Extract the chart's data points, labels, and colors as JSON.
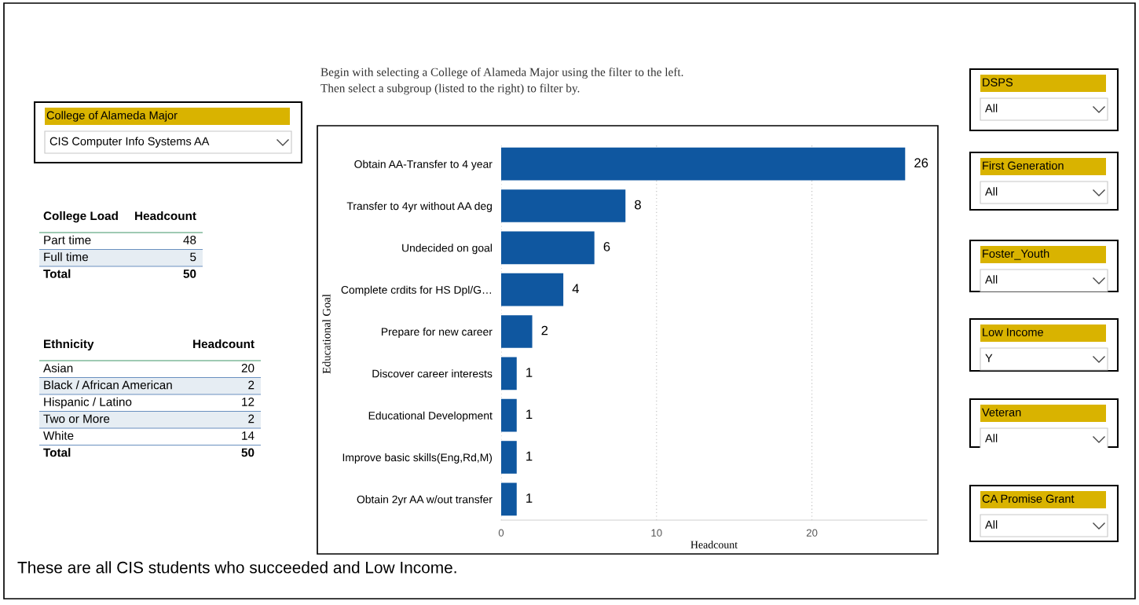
{
  "chart_data": [
    {
      "type": "other",
      "title": "College of Alameda Major",
      "annotations": [
        "CIS Computer Info Systems AA"
      ]
    },
    {
      "type": "other",
      "xlabel": "College Load",
      "ylabel": "Headcount",
      "categories": [
        "Part time",
        "Full time",
        "Total"
      ],
      "values": [
        48,
        5,
        50
      ],
      "data_labels": true
    },
    {
      "type": "other",
      "xlabel": "Ethnicity",
      "ylabel": "Headcount",
      "categories": [
        "Asian",
        "Black / African American",
        "Hispanic / Latino",
        "Two or More",
        "White",
        "Total"
      ],
      "values": [
        20,
        2,
        12,
        2,
        14,
        50
      ],
      "data_labels": true
    },
    {
      "type": "bar",
      "orientation": "horizontal",
      "subtitle": "Begin with selecting a College of Alameda Major using the filter to the left.\nThen select a subgroup (listed to the right) to filter by.",
      "ylabel": "Educational Goal",
      "xlabel": "Headcount",
      "categories": [
        "Obtain AA-Transfer to 4 year",
        "Transfer to 4yr without AA deg",
        "Undecided on goal",
        "Complete crdits for HS Dpl/G…",
        "Prepare for new career",
        "Discover career interests",
        "Educational Development",
        "Improve basic skills(Eng,Rd,M)",
        "Obtain 2yr AA w/out transfer"
      ],
      "values": [
        26,
        8,
        6,
        4,
        2,
        1,
        1,
        1,
        1
      ],
      "color": "#0f57a0",
      "data_labels": true,
      "xlim": [
        0,
        27.4
      ],
      "xticks": [
        0,
        10,
        20
      ],
      "grid": "x",
      "legend": false,
      "annotations": [
        "These are all CIS students who succeeded and Low Income."
      ]
    },
    {
      "type": "other",
      "title": "DSPS",
      "annotations": [
        "All"
      ]
    },
    {
      "type": "other",
      "title": "First Generation",
      "annotations": [
        "All"
      ]
    },
    {
      "type": "other",
      "title": "Foster_Youth",
      "annotations": [
        "All"
      ]
    },
    {
      "type": "other",
      "title": "Low Income",
      "annotations": [
        "Y"
      ]
    },
    {
      "type": "other",
      "title": "Veteran",
      "annotations": [
        "All"
      ]
    },
    {
      "type": "other",
      "title": "CA Promise Grant",
      "annotations": [
        "All"
      ]
    }
  ]
}
